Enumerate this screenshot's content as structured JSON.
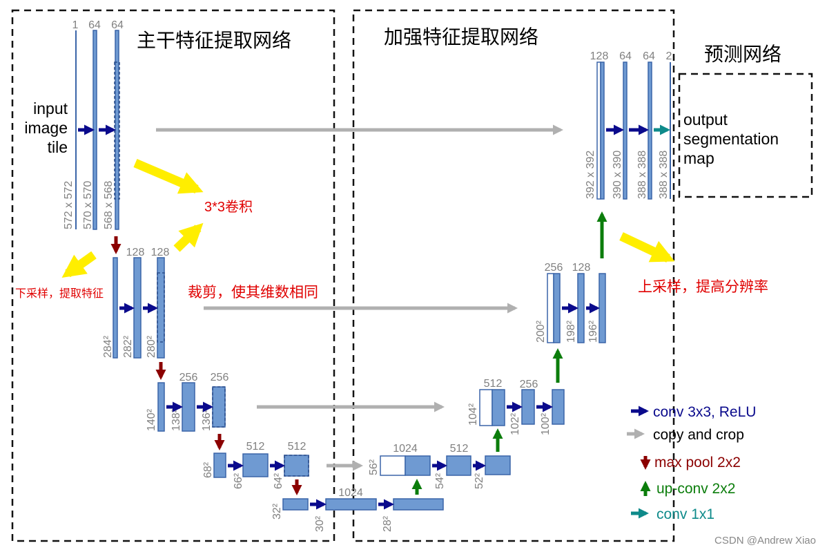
{
  "sections": {
    "encoder_title": "主干特征提取网络",
    "decoder_title": "加强特征提取网络",
    "predict_title": "预测网络"
  },
  "input_label": [
    "input",
    "image",
    "tile"
  ],
  "output_label": [
    "output",
    "segmentation",
    "map"
  ],
  "annotations": {
    "conv33": "3*3卷积",
    "downsample": "下采样，提取特征",
    "crop": "裁剪，使其维数相同",
    "upsample": "上采样，提高分辨率"
  },
  "channels": {
    "l1": [
      "1",
      "64",
      "64"
    ],
    "l2": [
      "128",
      "128"
    ],
    "l3": [
      "256",
      "256"
    ],
    "l4": [
      "512",
      "512"
    ],
    "l5": "1024",
    "l5b": "1024",
    "u4": [
      "512"
    ],
    "u3": [
      "512",
      "256"
    ],
    "u2": [
      "256",
      "128"
    ],
    "u1": [
      "128",
      "64",
      "64",
      "2"
    ]
  },
  "sizes": {
    "l1": [
      "572 x 572",
      "570 x 570",
      "568 x 568"
    ],
    "l2": [
      "284²",
      "282²",
      "280²"
    ],
    "l3": [
      "140²",
      "138²",
      "136²"
    ],
    "l4": [
      "68²",
      "66²",
      "64²"
    ],
    "l5": [
      "32²",
      "30²",
      "28²"
    ],
    "u4": [
      "56²",
      "54²",
      "52²"
    ],
    "u3": [
      "104²",
      "102²",
      "100²"
    ],
    "u2": [
      "200²",
      "198²",
      "196²"
    ],
    "u1": [
      "392 x 392",
      "390 x 390",
      "388 x 388",
      "388 x 388"
    ]
  },
  "legend": [
    {
      "label": "conv 3x3, ReLU",
      "color": "#0a0a8c"
    },
    {
      "label": "copy and crop",
      "color": "#b0b0b0"
    },
    {
      "label": "max pool 2x2",
      "color": "#8b0000"
    },
    {
      "label": "up-conv 2x2",
      "color": "#0b7d0b"
    },
    {
      "label": "conv 1x1",
      "color": "#0e8a8a"
    }
  ],
  "watermark": "CSDN @Andrew Xiao",
  "colors": {
    "conv": "#0a0a8c",
    "copy": "#b0b0b0",
    "pool": "#8b0000",
    "up": "#0b7d0b",
    "conv1x1": "#0e8a8a",
    "highlight": "#ffee00"
  }
}
